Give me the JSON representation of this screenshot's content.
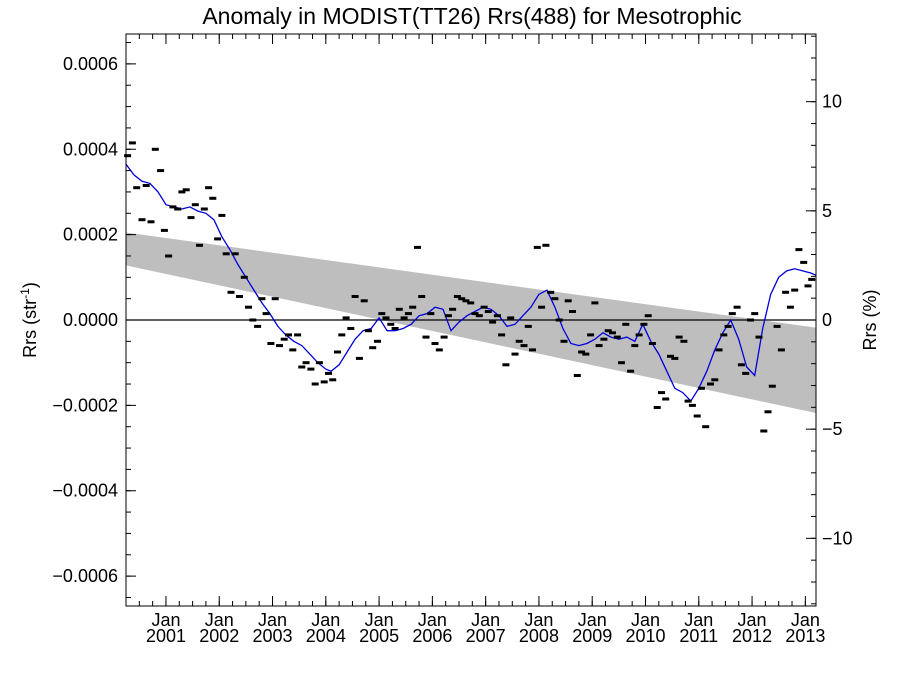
{
  "chart_data": {
    "type": "line",
    "title": "Anomaly in MODIST(TT26) Rrs(488) for Mesotrophic",
    "ylabel": "Rrs (str",
    "ylabel_superscript": "-1",
    "ylabel_suffix": ")",
    "y2label": "Rrs (%)",
    "ylim": [
      -0.00067,
      0.00067
    ],
    "y2lim": [
      -13.1,
      13.1
    ],
    "y_ticks": [
      -0.0006,
      -0.0004,
      -0.0002,
      0.0,
      0.0002,
      0.0004,
      0.0006
    ],
    "y_tick_labels": [
      "−0.0006",
      "−0.0004",
      "−0.0002",
      "0.0000",
      "0.0002",
      "0.0004",
      "0.0006"
    ],
    "y2_ticks": [
      -10,
      -5,
      0,
      5,
      10
    ],
    "y2_tick_labels": [
      "−10",
      "−5",
      "0",
      "5",
      "10"
    ],
    "xlim": [
      2000.25,
      2013.2
    ],
    "x_ticks": [
      2001,
      2002,
      2003,
      2004,
      2005,
      2006,
      2007,
      2008,
      2009,
      2010,
      2011,
      2012,
      2013
    ],
    "x_tick_labels_top": [
      "Jan",
      "Jan",
      "Jan",
      "Jan",
      "Jan",
      "Jan",
      "Jan",
      "Jan",
      "Jan",
      "Jan",
      "Jan",
      "Jan",
      "Jan"
    ],
    "x_tick_labels_bottom": [
      "2001",
      "2002",
      "2003",
      "2004",
      "2005",
      "2006",
      "2007",
      "2008",
      "2009",
      "2010",
      "2011",
      "2012",
      "2013"
    ],
    "zero_line": true,
    "trend_band": {
      "x": [
        2000.25,
        2013.2
      ],
      "upper": [
        0.000205,
        -1.8e-05
      ],
      "lower": [
        0.000128,
        -0.000218
      ],
      "color": "#bebebe"
    },
    "series": [
      {
        "style": "line",
        "color": "#0000dd",
        "x": [
          2000.25,
          2000.4,
          2000.55,
          2000.7,
          2000.85,
          2001.0,
          2001.15,
          2001.3,
          2001.45,
          2001.6,
          2001.75,
          2001.9,
          2002.05,
          2002.2,
          2002.35,
          2002.5,
          2002.65,
          2002.8,
          2002.95,
          2003.1,
          2003.25,
          2003.4,
          2003.55,
          2003.7,
          2003.85,
          2004.0,
          2004.1,
          2004.25,
          2004.4,
          2004.55,
          2004.7,
          2004.85,
          2005.0,
          2005.15,
          2005.3,
          2005.45,
          2005.6,
          2005.75,
          2005.9,
          2006.05,
          2006.2,
          2006.35,
          2006.5,
          2006.65,
          2006.8,
          2006.95,
          2007.1,
          2007.25,
          2007.4,
          2007.55,
          2007.7,
          2007.85,
          2008.0,
          2008.15,
          2008.3,
          2008.45,
          2008.6,
          2008.75,
          2008.9,
          2009.05,
          2009.2,
          2009.35,
          2009.5,
          2009.65,
          2009.8,
          2009.95,
          2010.1,
          2010.25,
          2010.4,
          2010.55,
          2010.7,
          2010.85,
          2011.0,
          2011.15,
          2011.3,
          2011.45,
          2011.6,
          2011.75,
          2011.9,
          2012.05,
          2012.2,
          2012.35,
          2012.5,
          2012.65,
          2012.8,
          2012.95,
          2013.1,
          2013.2
        ],
        "y": [
          0.000365,
          0.00034,
          0.000325,
          0.00032,
          0.0003,
          0.00027,
          0.000265,
          0.00026,
          0.000265,
          0.000255,
          0.00025,
          0.000235,
          0.000195,
          0.000165,
          0.00013,
          0.0001,
          7e-05,
          4e-05,
          1.5e-05,
          -1.5e-05,
          -3.5e-05,
          -5e-05,
          -6e-05,
          -8e-05,
          -0.0001,
          -0.000115,
          -0.00012,
          -0.000105,
          -7.5e-05,
          -4.5e-05,
          -2.5e-05,
          -2e-05,
          5e-06,
          -2.5e-05,
          -2.5e-05,
          -2e-05,
          -1e-05,
          1e-05,
          1.5e-05,
          3e-05,
          2.5e-05,
          -2.5e-05,
          -5e-06,
          1e-05,
          2e-05,
          3e-05,
          2.5e-05,
          1e-05,
          -1.5e-05,
          -1e-05,
          1e-05,
          3e-05,
          6e-05,
          7e-05,
          3e-05,
          -2e-05,
          -5.5e-05,
          -6e-05,
          -5.5e-05,
          -4.5e-05,
          -3e-05,
          -4e-05,
          -4.5e-05,
          -4e-05,
          -5e-05,
          -1e-05,
          -5e-05,
          -8e-05,
          -0.00012,
          -0.00016,
          -0.00017,
          -0.00019,
          -0.00016,
          -0.00012,
          -7e-05,
          -3e-05,
          0.0,
          -4.5e-05,
          -0.00011,
          -0.00013,
          -2e-05,
          6e-05,
          0.0001,
          0.000115,
          0.00012,
          0.000115,
          0.00011,
          0.000105
        ]
      },
      {
        "style": "marker",
        "marker": "dash",
        "color": "#000000",
        "x": [
          2000.28,
          2000.37,
          2000.45,
          2000.55,
          2000.63,
          2000.72,
          2000.8,
          2000.9,
          2000.97,
          2001.05,
          2001.13,
          2001.22,
          2001.3,
          2001.38,
          2001.47,
          2001.55,
          2001.63,
          2001.72,
          2001.8,
          2001.88,
          2001.97,
          2002.05,
          2002.13,
          2002.22,
          2002.3,
          2002.38,
          2002.47,
          2002.55,
          2002.63,
          2002.72,
          2002.8,
          2002.88,
          2002.97,
          2003.05,
          2003.13,
          2003.22,
          2003.3,
          2003.38,
          2003.47,
          2003.55,
          2003.63,
          2003.72,
          2003.8,
          2003.88,
          2003.97,
          2004.05,
          2004.13,
          2004.22,
          2004.3,
          2004.38,
          2004.47,
          2004.55,
          2004.63,
          2004.72,
          2004.8,
          2004.88,
          2004.97,
          2005.05,
          2005.13,
          2005.22,
          2005.3,
          2005.38,
          2005.47,
          2005.55,
          2005.63,
          2005.72,
          2005.8,
          2005.88,
          2005.97,
          2006.05,
          2006.13,
          2006.22,
          2006.3,
          2006.38,
          2006.47,
          2006.55,
          2006.63,
          2006.72,
          2006.8,
          2006.88,
          2006.97,
          2007.05,
          2007.13,
          2007.22,
          2007.3,
          2007.38,
          2007.47,
          2007.55,
          2007.63,
          2007.72,
          2007.8,
          2007.88,
          2007.97,
          2008.05,
          2008.13,
          2008.22,
          2008.3,
          2008.38,
          2008.47,
          2008.55,
          2008.63,
          2008.72,
          2008.8,
          2008.88,
          2008.97,
          2009.05,
          2009.13,
          2009.22,
          2009.3,
          2009.38,
          2009.47,
          2009.55,
          2009.63,
          2009.72,
          2009.8,
          2009.88,
          2009.97,
          2010.05,
          2010.13,
          2010.22,
          2010.3,
          2010.38,
          2010.47,
          2010.55,
          2010.63,
          2010.72,
          2010.8,
          2010.88,
          2010.97,
          2011.05,
          2011.13,
          2011.22,
          2011.3,
          2011.38,
          2011.47,
          2011.55,
          2011.63,
          2011.72,
          2011.8,
          2011.88,
          2011.97,
          2012.05,
          2012.13,
          2012.22,
          2012.3,
          2012.38,
          2012.47,
          2012.55,
          2012.63,
          2012.72,
          2012.8,
          2012.88,
          2012.97,
          2013.05,
          2013.12
        ],
        "y": [
          0.000385,
          0.000415,
          0.00031,
          0.000235,
          0.000315,
          0.00023,
          0.0004,
          0.00035,
          0.00021,
          0.00015,
          0.000265,
          0.00026,
          0.0003,
          0.000305,
          0.00024,
          0.00027,
          0.000175,
          0.00026,
          0.00031,
          0.000285,
          0.00019,
          0.000245,
          0.000155,
          6.5e-05,
          0.000155,
          5.5e-05,
          0.0001,
          3e-05,
          0.0,
          -1.5e-05,
          5e-05,
          1.5e-05,
          -5.5e-05,
          5e-05,
          -6e-05,
          -4.5e-05,
          -3.5e-05,
          -7e-05,
          -3.5e-05,
          -0.00011,
          -0.0001,
          -0.000115,
          -0.00015,
          -0.0001,
          -0.000145,
          -0.000125,
          -0.00014,
          -7.5e-05,
          -3.5e-05,
          5e-06,
          -2e-05,
          5.5e-05,
          -9e-05,
          4.5e-05,
          -2.5e-05,
          -6.5e-05,
          -5e-05,
          1.5e-05,
          5e-06,
          -1e-05,
          -2e-05,
          2.5e-05,
          5e-06,
          1.5e-05,
          3e-05,
          0.00017,
          5.5e-05,
          -4e-05,
          1.5e-05,
          -5.5e-05,
          -7e-05,
          -4e-05,
          1e-05,
          2.5e-05,
          5.5e-05,
          5e-05,
          4.5e-05,
          4e-05,
          1.5e-05,
          1e-05,
          3e-05,
          2e-05,
          -5e-06,
          1e-05,
          -3.5e-05,
          -0.000105,
          5e-06,
          -8e-05,
          -5e-05,
          -6e-05,
          -1.5e-05,
          -7e-05,
          0.00017,
          3e-05,
          0.000175,
          6.5e-05,
          5e-05,
          0.0,
          -5e-05,
          4.5e-05,
          2e-05,
          -0.00013,
          -7.5e-05,
          -8e-05,
          -3.5e-05,
          4e-05,
          -6e-05,
          -4.5e-05,
          -2.5e-05,
          -3e-05,
          -4e-05,
          -0.0001,
          -1e-05,
          -0.00012,
          -6e-05,
          -3.5e-05,
          -1e-05,
          1e-05,
          -5.5e-05,
          -0.000205,
          -0.00017,
          -0.000185,
          -8.5e-05,
          -9e-05,
          -4e-05,
          -5e-05,
          -0.00019,
          -0.0002,
          -0.000225,
          -0.00016,
          -0.00025,
          -0.00015,
          -0.00014,
          -7e-05,
          -3.5e-05,
          -1.5e-05,
          1.5e-05,
          3e-05,
          -0.000105,
          -0.000125,
          0.0,
          1.5e-05,
          -4e-05,
          -0.00026,
          -0.000215,
          -0.000155,
          -1.5e-05,
          -7e-05,
          6.5e-05,
          3e-05,
          7e-05,
          0.000165,
          0.000135,
          8e-05,
          9.5e-05
        ]
      }
    ]
  }
}
